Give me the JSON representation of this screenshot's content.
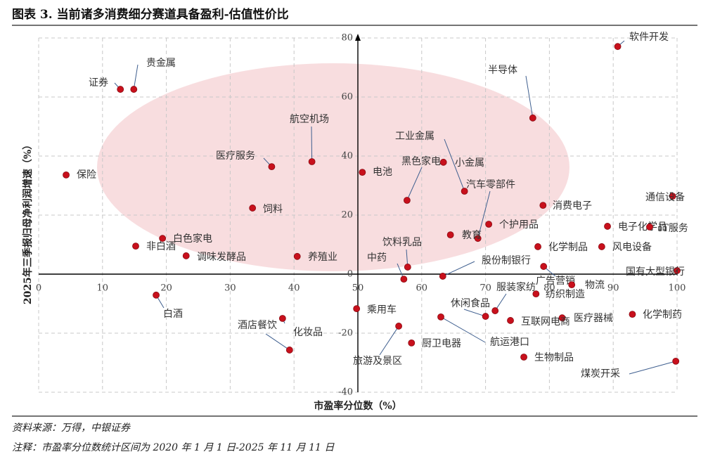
{
  "chart_data": {
    "type": "scatter",
    "title": "图表 3. 当前诸多消费细分赛道具备盈利-估值性价比",
    "x_label": "市盈率分位数（%）",
    "y_label": "2025年三季报归母净利润增速（%）",
    "color": "#c8101c",
    "grid": true,
    "xlim": [
      0,
      100
    ],
    "xticks": [
      0,
      10,
      20,
      30,
      40,
      50,
      60,
      70,
      80,
      90,
      100
    ],
    "ylim": [
      -40,
      80
    ],
    "yticks": [
      -40,
      -20,
      0,
      20,
      40,
      60,
      80
    ],
    "labels": [
      "软件开发",
      "贵金属",
      "证券",
      "半导体",
      "航空机场",
      "医疗服务",
      "保险",
      "电池",
      "小金属",
      "工业金属",
      "黑色家电",
      "汽车零部件",
      "通信设备",
      "消费电子",
      "饲料",
      "个护用品",
      "电子化学品",
      "IT服务",
      "教育",
      "白色家电",
      "非白酒",
      "化学制品",
      "风电设备",
      "调味发酵品",
      "养殖业",
      "饮料乳品",
      "股份制银行",
      "中药",
      "国有大型银行",
      "广告营销",
      "物流",
      "纺织制造",
      "白酒",
      "服装家纺",
      "乘用车",
      "休闲食品",
      "医疗器械",
      "化学制药",
      "酒店餐饮",
      "互联网电商",
      "航运港口",
      "旅游及景区",
      "厨卫电器",
      "化妆品",
      "生物制品",
      "煤炭开采"
    ],
    "x": [
      90.7,
      14.9,
      12.8,
      77.4,
      42.8,
      36.5,
      4.3,
      50.7,
      63.4,
      66.7,
      57.7,
      68.8,
      99.3,
      79.0,
      33.5,
      70.5,
      89.1,
      95.7,
      64.5,
      19.4,
      15.2,
      78.2,
      88.2,
      23.1,
      40.5,
      57.8,
      63.3,
      57.2,
      100,
      79.1,
      83.5,
      77.9,
      18.4,
      71.5,
      49.8,
      70.0,
      82.0,
      93.0,
      38.2,
      73.9,
      63.0,
      56.4,
      58.4,
      39.3,
      76.0,
      99.8
    ],
    "values": [
      77.1,
      62.6,
      62.6,
      52.9,
      38.1,
      36.4,
      33.6,
      34.5,
      37.9,
      28.1,
      25.0,
      12.1,
      26.4,
      23.3,
      22.4,
      16.9,
      16.2,
      16.0,
      13.3,
      12.1,
      9.5,
      9.3,
      9.3,
      6.2,
      6.0,
      2.4,
      -0.7,
      -1.7,
      1.2,
      2.6,
      -3.6,
      -6.7,
      -7.1,
      -12.4,
      -11.7,
      -14.3,
      -14.8,
      -13.6,
      -15.0,
      -15.7,
      -14.5,
      -17.6,
      -23.3,
      -25.7,
      -28.1,
      -29.5
    ]
  },
  "notes": {
    "source": "资料来源：万得，中银证券",
    "note": "注释：市盈率分位数统计区间为 2020 年 1 月 1 日-2025 年 11 月 11 日"
  }
}
